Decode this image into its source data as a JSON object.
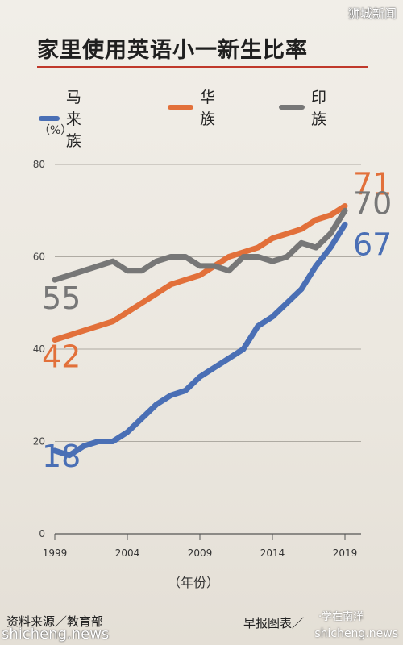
{
  "watermarks": {
    "top_right": "狮城新闻",
    "bottom_left": "shicheng.news",
    "bottom_right": "shicheng.news",
    "middle": "·学在南洋"
  },
  "footer": {
    "source": "资料来源／教育部",
    "credit": "早报图表／"
  },
  "chart_data": {
    "type": "line",
    "title": "家里使用英语小一新生比率",
    "ylabel": "（%）",
    "xlabel": "（年份）",
    "ylim": [
      0,
      80
    ],
    "xlim": [
      1999,
      2019
    ],
    "y_ticks": [
      "0",
      "20",
      "40",
      "60",
      "80"
    ],
    "x_ticks": [
      "1999",
      "2004",
      "2009",
      "2014",
      "2019"
    ],
    "series": [
      {
        "name": "马来族",
        "color": "#4a6fb5",
        "x": [
          1999,
          2000,
          2001,
          2002,
          2003,
          2004,
          2005,
          2006,
          2007,
          2008,
          2009,
          2010,
          2011,
          2012,
          2013,
          2014,
          2015,
          2016,
          2017,
          2018,
          2019
        ],
        "values": [
          18,
          17,
          19,
          20,
          20,
          22,
          25,
          28,
          30,
          31,
          34,
          36,
          38,
          40,
          45,
          47,
          50,
          53,
          58,
          62,
          67
        ],
        "start_label": "18",
        "end_label": "67"
      },
      {
        "name": "华族",
        "color": "#e2703a",
        "x": [
          1999,
          2000,
          2001,
          2002,
          2003,
          2004,
          2005,
          2006,
          2007,
          2008,
          2009,
          2010,
          2011,
          2012,
          2013,
          2014,
          2015,
          2016,
          2017,
          2018,
          2019
        ],
        "values": [
          42,
          43,
          44,
          45,
          46,
          48,
          50,
          52,
          54,
          55,
          56,
          58,
          60,
          61,
          62,
          64,
          65,
          66,
          68,
          69,
          71
        ],
        "start_label": "42",
        "end_label": "71"
      },
      {
        "name": "印族",
        "color": "#777777",
        "x": [
          1999,
          2000,
          2001,
          2002,
          2003,
          2004,
          2005,
          2006,
          2007,
          2008,
          2009,
          2010,
          2011,
          2012,
          2013,
          2014,
          2015,
          2016,
          2017,
          2018,
          2019
        ],
        "values": [
          55,
          56,
          57,
          58,
          59,
          57,
          57,
          59,
          60,
          60,
          58,
          58,
          57,
          60,
          60,
          59,
          60,
          63,
          62,
          65,
          70
        ],
        "start_label": "55",
        "end_label": "70"
      }
    ]
  }
}
